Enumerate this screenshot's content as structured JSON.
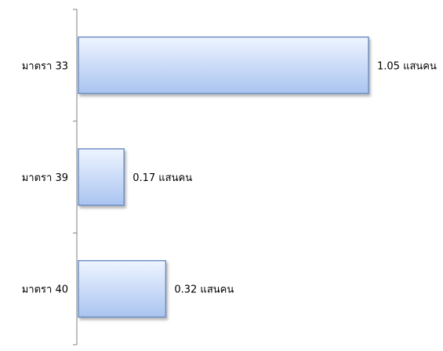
{
  "chart_data": {
    "type": "bar",
    "orientation": "horizontal",
    "categories": [
      "มาตรา 33",
      "มาตรา 39",
      "มาตรา 40"
    ],
    "values": [
      1.05,
      0.17,
      0.32
    ],
    "data_labels": [
      "1.05 แสนคน",
      "0.17 แสนคน",
      "0.32 แสนคน"
    ],
    "unit": "แสนคน",
    "xlim": [
      0,
      1.05
    ],
    "grid": false,
    "legend": "none",
    "title": "",
    "xlabel": "",
    "ylabel": "",
    "colors": {
      "bar_top": "#eef4ff",
      "bar_bottom": "#a9c4f0",
      "bar_edge": "#6f8fc3",
      "axis": "#808080"
    }
  }
}
